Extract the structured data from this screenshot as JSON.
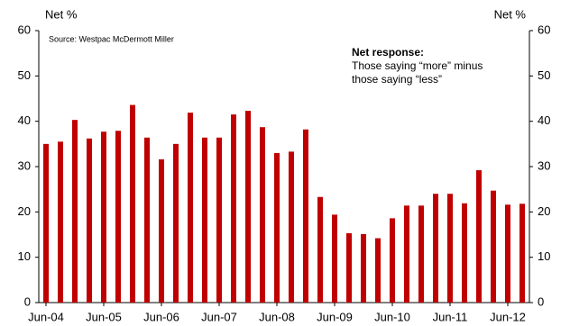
{
  "chart_data": {
    "type": "bar",
    "ylabel": "Net %",
    "y2label": "Net %",
    "source": "Source: Westpac McDermott Miller",
    "annotation_title": "Net response:",
    "annotation_lines": [
      "Those saying “more” minus",
      "those saying “less”"
    ],
    "categories": [
      "Jun-04",
      null,
      null,
      null,
      "Jun-05",
      null,
      null,
      null,
      "Jun-06",
      null,
      null,
      null,
      "Jun-07",
      null,
      null,
      null,
      "Jun-08",
      null,
      null,
      null,
      "Jun-09",
      null,
      null,
      null,
      "Jun-10",
      null,
      null,
      null,
      "Jun-11",
      null,
      null,
      null,
      "Jun-12",
      null
    ],
    "values": [
      35,
      35.5,
      40.3,
      36.2,
      37.7,
      37.9,
      43.6,
      36.4,
      31.6,
      35,
      41.9,
      36.4,
      36.4,
      41.5,
      42.3,
      38.7,
      33,
      33.3,
      38.2,
      23.3,
      19.4,
      15.3,
      15.1,
      14.2,
      18.6,
      21.4,
      21.4,
      24,
      24,
      21.9,
      29.2,
      24.7,
      21.6,
      21.8
    ],
    "color": "#c00000",
    "ylim": [
      0,
      60
    ],
    "yticks": [
      0,
      10,
      20,
      30,
      40,
      50,
      60
    ],
    "y2lim": [
      0,
      60
    ],
    "y2ticks": [
      0,
      10,
      20,
      30,
      40,
      50,
      60
    ],
    "grid": false
  }
}
